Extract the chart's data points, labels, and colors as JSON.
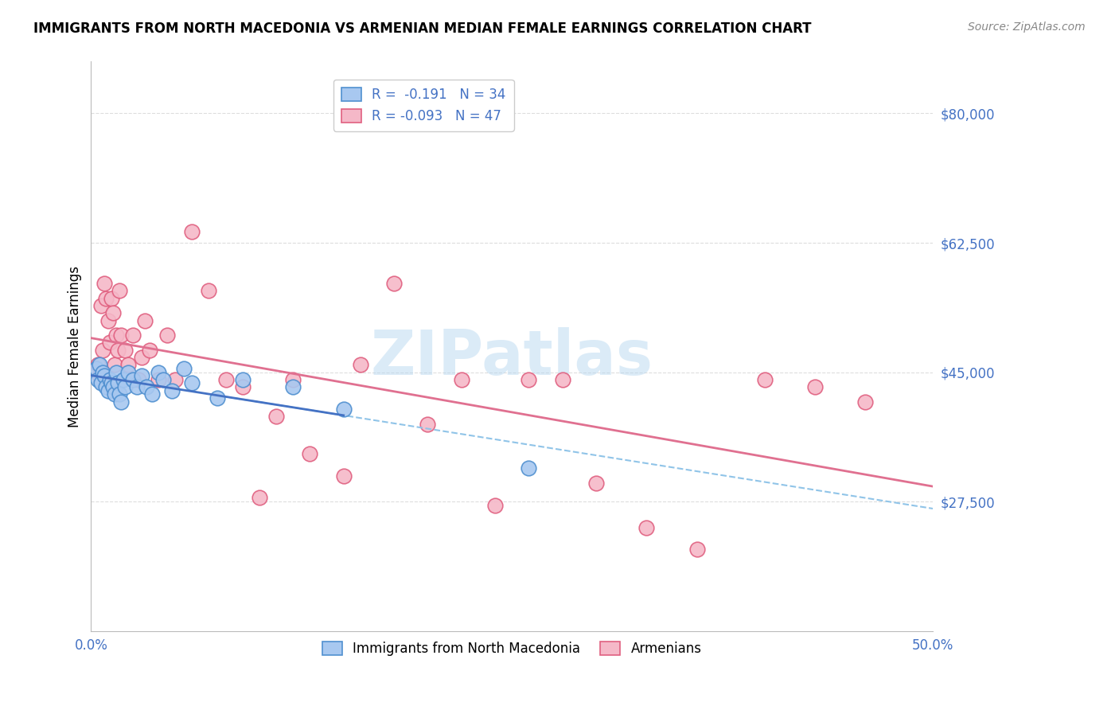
{
  "title": "IMMIGRANTS FROM NORTH MACEDONIA VS ARMENIAN MEDIAN FEMALE EARNINGS CORRELATION CHART",
  "source": "Source: ZipAtlas.com",
  "ylabel": "Median Female Earnings",
  "xlim": [
    0.0,
    0.5
  ],
  "ylim": [
    10000,
    87000
  ],
  "yticks": [
    27500,
    45000,
    62500,
    80000
  ],
  "ytick_labels": [
    "$27,500",
    "$45,000",
    "$62,500",
    "$80,000"
  ],
  "xticks": [
    0.0,
    0.1,
    0.2,
    0.3,
    0.4,
    0.5
  ],
  "xtick_labels": [
    "0.0%",
    "",
    "",
    "",
    "",
    "50.0%"
  ],
  "blue_R": "-0.191",
  "blue_N": "34",
  "pink_R": "-0.093",
  "pink_N": "47",
  "blue_color": "#A8C8F0",
  "pink_color": "#F5B8C8",
  "blue_edge_color": "#5090D0",
  "pink_edge_color": "#E06080",
  "blue_line_color": "#4472C4",
  "pink_line_color": "#E07090",
  "dashed_line_color": "#90C4E8",
  "watermark": "ZIPatlas",
  "blue_scatter_x": [
    0.003,
    0.004,
    0.005,
    0.006,
    0.007,
    0.008,
    0.009,
    0.01,
    0.011,
    0.012,
    0.013,
    0.014,
    0.015,
    0.016,
    0.017,
    0.018,
    0.019,
    0.02,
    0.022,
    0.025,
    0.027,
    0.03,
    0.033,
    0.036,
    0.04,
    0.043,
    0.048,
    0.055,
    0.06,
    0.075,
    0.09,
    0.12,
    0.15,
    0.26
  ],
  "blue_scatter_y": [
    45500,
    44000,
    46000,
    43500,
    45000,
    44500,
    43000,
    42500,
    44000,
    43500,
    43000,
    42000,
    45000,
    43500,
    42000,
    41000,
    44000,
    43000,
    45000,
    44000,
    43000,
    44500,
    43000,
    42000,
    45000,
    44000,
    42500,
    45500,
    43500,
    41500,
    44000,
    43000,
    40000,
    32000
  ],
  "pink_scatter_x": [
    0.004,
    0.005,
    0.006,
    0.007,
    0.008,
    0.009,
    0.01,
    0.011,
    0.012,
    0.013,
    0.014,
    0.015,
    0.016,
    0.017,
    0.018,
    0.02,
    0.022,
    0.025,
    0.028,
    0.03,
    0.032,
    0.035,
    0.04,
    0.045,
    0.05,
    0.06,
    0.07,
    0.08,
    0.09,
    0.1,
    0.11,
    0.12,
    0.13,
    0.15,
    0.16,
    0.18,
    0.2,
    0.22,
    0.24,
    0.26,
    0.28,
    0.3,
    0.33,
    0.36,
    0.4,
    0.43,
    0.46
  ],
  "pink_scatter_y": [
    46000,
    44500,
    54000,
    48000,
    57000,
    55000,
    52000,
    49000,
    55000,
    53000,
    46000,
    50000,
    48000,
    56000,
    50000,
    48000,
    46000,
    50000,
    44000,
    47000,
    52000,
    48000,
    44000,
    50000,
    44000,
    64000,
    56000,
    44000,
    43000,
    28000,
    39000,
    44000,
    34000,
    31000,
    46000,
    57000,
    38000,
    44000,
    27000,
    44000,
    44000,
    30000,
    24000,
    21000,
    44000,
    43000,
    41000
  ],
  "background_color": "#FFFFFF",
  "grid_color": "#DDDDDD"
}
